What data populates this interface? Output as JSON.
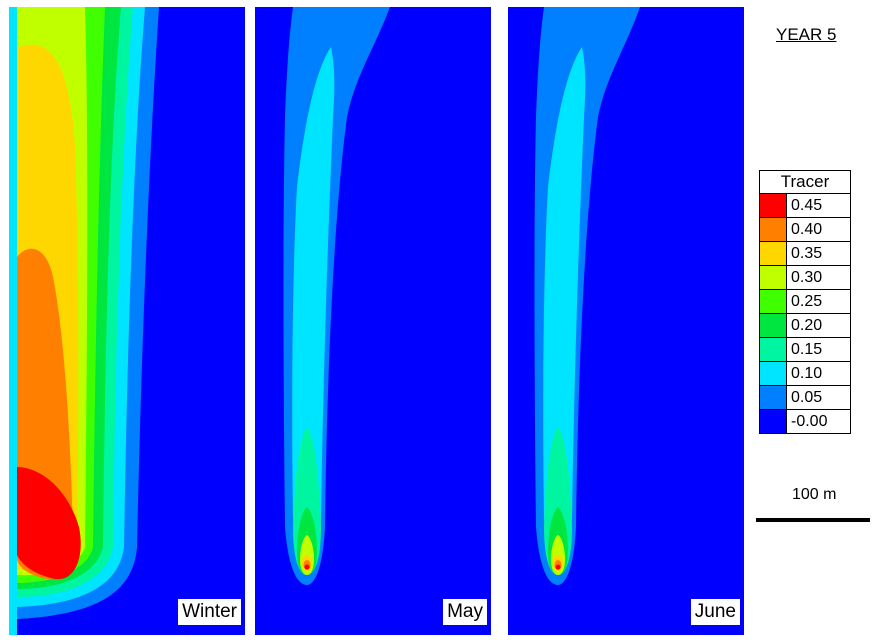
{
  "title": "YEAR 5",
  "panels": [
    {
      "label": "Winter",
      "state": "winter"
    },
    {
      "label": "May",
      "state": "plume"
    },
    {
      "label": "June",
      "state": "plume"
    }
  ],
  "legend": {
    "title": "Tracer",
    "items": [
      {
        "value": "0.45",
        "color": "#ff0000"
      },
      {
        "value": "0.40",
        "color": "#ff7f00"
      },
      {
        "value": "0.35",
        "color": "#ffd700"
      },
      {
        "value": "0.30",
        "color": "#bfff00"
      },
      {
        "value": "0.25",
        "color": "#40ff00"
      },
      {
        "value": "0.20",
        "color": "#00e640"
      },
      {
        "value": "0.15",
        "color": "#00f5a0"
      },
      {
        "value": "0.10",
        "color": "#00e5ff"
      },
      {
        "value": "0.05",
        "color": "#0080ff"
      },
      {
        "value": "-0.00",
        "color": "#0000ff"
      }
    ]
  },
  "scale": {
    "label": "100 m"
  }
}
